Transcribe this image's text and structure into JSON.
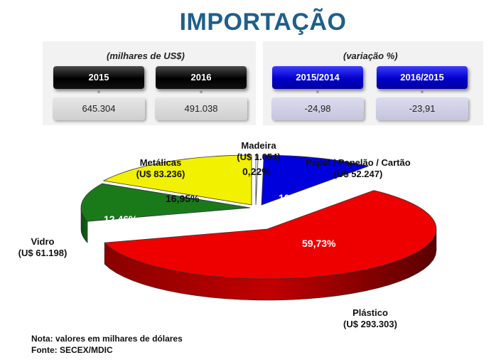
{
  "title": "IMPORTAÇÃO",
  "header": {
    "unit_value": "(milhares de US$)",
    "unit_change": "(variação %)",
    "columns": [
      {
        "label": "2015",
        "value": "645.304"
      },
      {
        "label": "2016",
        "value": "491.038"
      },
      {
        "label": "2015/2014",
        "value": "-24,98"
      },
      {
        "label": "2016/2015",
        "value": "-23,91"
      }
    ]
  },
  "chart_data": {
    "type": "pie",
    "slices": [
      {
        "name": "Madeira",
        "amount": "(U$ 1.054)",
        "percent": 0.22,
        "percent_label": "0,22%",
        "color": "#ffffff"
      },
      {
        "name": "Papel / Papelão / Cartão",
        "amount": "(U$ 52.247)",
        "percent": 10.64,
        "percent_label": "10,64%",
        "color": "#0000dd"
      },
      {
        "name": "Plástico",
        "amount": "(U$ 293.303)",
        "percent": 59.73,
        "percent_label": "59,73%",
        "color": "#ee0000"
      },
      {
        "name": "Vidro",
        "amount": "(U$ 61.198)",
        "percent": 12.46,
        "percent_label": "12,46%",
        "color": "#1a7a1a"
      },
      {
        "name": "Metálicas",
        "amount": "(U$ 83.236)",
        "percent": 16.95,
        "percent_label": "16,95%",
        "color": "#f2f200"
      }
    ]
  },
  "notes": {
    "note": "Nota: valores em milhares de dólares",
    "source": "Fonte: SECEX/MDIC"
  }
}
